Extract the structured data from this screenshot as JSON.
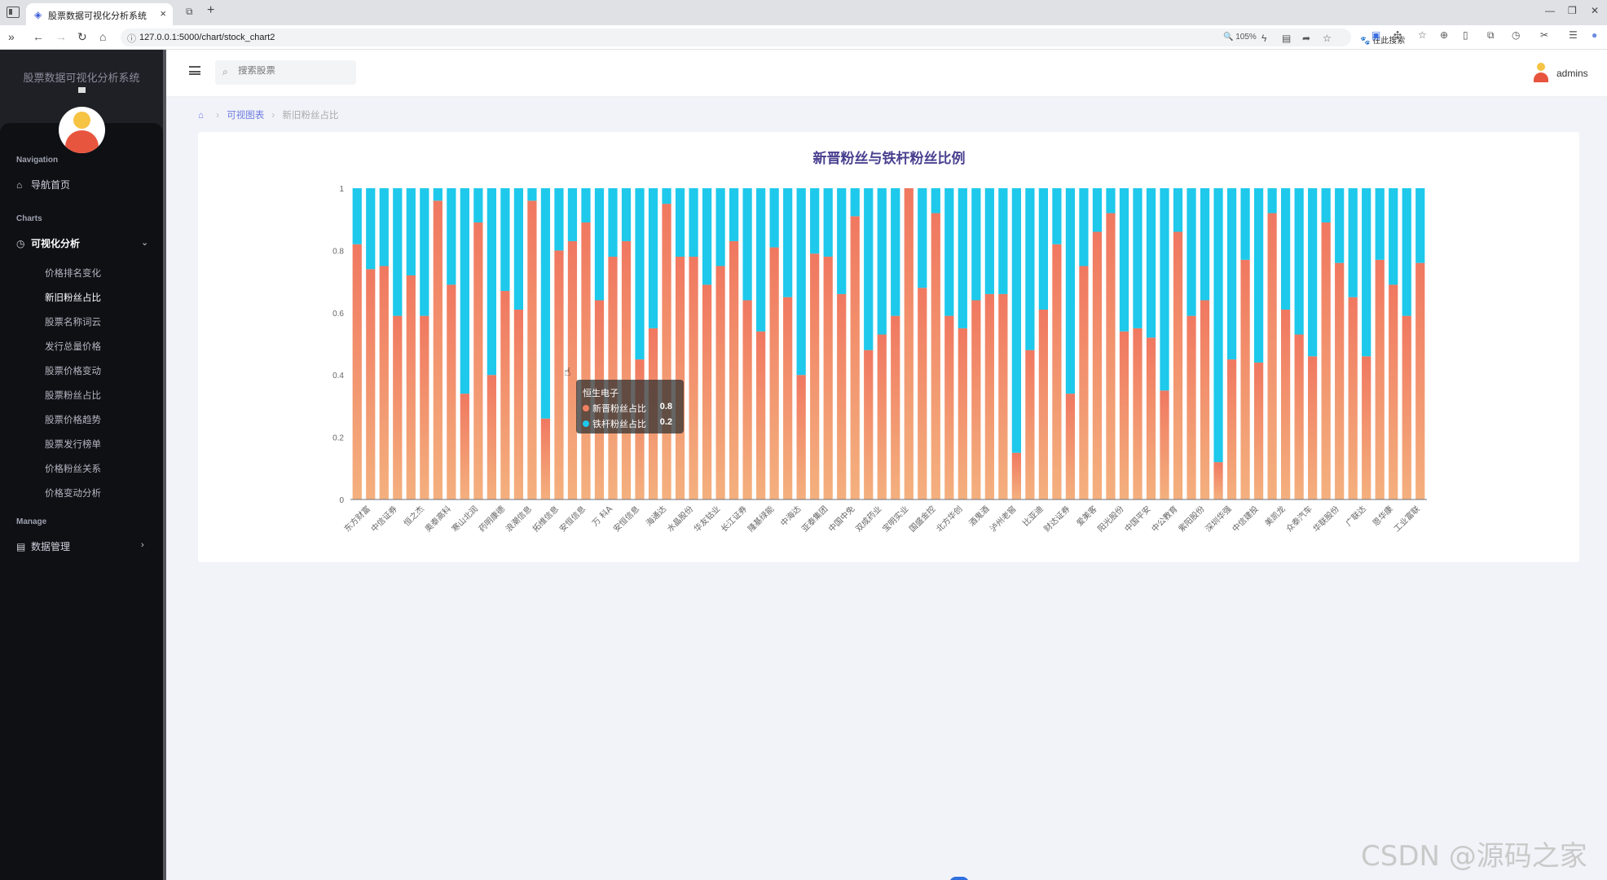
{
  "browser": {
    "tab_title": "股票数据可视化分析系统",
    "url": "127.0.0.1:5000/chart/stock_chart2",
    "zoom": "105%",
    "search_engine": "在此搜索"
  },
  "sidebar": {
    "app_title": "股票数据可视化分析系统",
    "sections": {
      "navigation": "Navigation",
      "charts": "Charts",
      "manage": "Manage"
    },
    "home_label": "导航首页",
    "charts_group_label": "可视化分析",
    "chart_items": [
      {
        "label": "价格排名变化",
        "active": false
      },
      {
        "label": "新旧粉丝占比",
        "active": true
      },
      {
        "label": "股票名称词云",
        "active": false
      },
      {
        "label": "发行总量价格",
        "active": false
      },
      {
        "label": "股票价格变动",
        "active": false
      },
      {
        "label": "股票粉丝占比",
        "active": false
      },
      {
        "label": "股票价格趋势",
        "active": false
      },
      {
        "label": "股票发行榜单",
        "active": false
      },
      {
        "label": "价格粉丝关系",
        "active": false
      },
      {
        "label": "价格变动分析",
        "active": false
      }
    ],
    "data_manage_label": "数据管理"
  },
  "header": {
    "search_placeholder": "搜索股票",
    "username": "admins"
  },
  "breadcrumb": {
    "parent": "可视图表",
    "current": "新旧粉丝占比"
  },
  "chart_data": {
    "type": "bar",
    "stacked": true,
    "title": "新晋粉丝与铁杆粉丝比例",
    "ylim": [
      0,
      1
    ],
    "yticks": [
      0,
      0.2,
      0.4,
      0.6,
      0.8,
      1
    ],
    "xtick_labels": [
      "东方财富",
      "中信证券",
      "恒之杰",
      "奥泰高科",
      "寒山北润",
      "药明康德",
      "浪潮信息",
      "拓维信息",
      "安恒信息",
      "万 科A",
      "安恒信息",
      "海通达",
      "水晶股份",
      "华友钴业",
      "长江证券",
      "隆基绿能",
      "中海达",
      "亚泰集团",
      "中国中免",
      "双成药业",
      "宝明实业",
      "国盛金控",
      "北方华创",
      "酒鬼酒",
      "泸州老窖",
      "比亚迪",
      "财达证券",
      "爱美客",
      "阳光股份",
      "中国平安",
      "中公教育",
      "紫阳股份",
      "深圳华强",
      "中信建投",
      "美凯龙",
      "众泰汽车",
      "华联股份",
      "广联达",
      "恩华康",
      "工业富联"
    ],
    "series": [
      {
        "name": "新晋粉丝占比",
        "color": "#f08062",
        "values": [
          0.82,
          0.74,
          0.75,
          0.59,
          0.72,
          0.59,
          0.96,
          0.69,
          0.34,
          0.89,
          0.4,
          0.67,
          0.61,
          0.96,
          0.26,
          0.8,
          0.83,
          0.89,
          0.64,
          0.78,
          0.83,
          0.45,
          0.55,
          0.95,
          0.78,
          0.78,
          0.69,
          0.75,
          0.83,
          0.64,
          0.54,
          0.81,
          0.65,
          0.4,
          0.79,
          0.78,
          0.66,
          0.91,
          0.48,
          0.53,
          0.59,
          1.0,
          0.68,
          0.92,
          0.59,
          0.55,
          0.64,
          0.66,
          0.66,
          0.15,
          0.48,
          0.61,
          0.82,
          0.34,
          0.75,
          0.86,
          0.92,
          0.54,
          0.55,
          0.52,
          0.35,
          0.86,
          0.59,
          0.64,
          0.12,
          0.45,
          0.77,
          0.44,
          0.92,
          0.61,
          0.53,
          0.46,
          0.89,
          0.76,
          0.65,
          0.46,
          0.77,
          0.69,
          0.59,
          0.76
        ]
      },
      {
        "name": "铁杆粉丝占比",
        "color": "#1ec9eb",
        "values": [
          0.18,
          0.26,
          0.25,
          0.41,
          0.28,
          0.41,
          0.04,
          0.31,
          0.66,
          0.11,
          0.6,
          0.33,
          0.39,
          0.04,
          0.74,
          0.2,
          0.17,
          0.11,
          0.36,
          0.22,
          0.17,
          0.55,
          0.45,
          0.05,
          0.22,
          0.22,
          0.31,
          0.25,
          0.17,
          0.36,
          0.46,
          0.19,
          0.35,
          0.6,
          0.21,
          0.22,
          0.34,
          0.09,
          0.52,
          0.47,
          0.41,
          0.0,
          0.32,
          0.08,
          0.41,
          0.45,
          0.36,
          0.34,
          0.34,
          0.85,
          0.52,
          0.39,
          0.18,
          0.66,
          0.25,
          0.14,
          0.08,
          0.46,
          0.45,
          0.48,
          0.65,
          0.14,
          0.41,
          0.36,
          0.88,
          0.55,
          0.23,
          0.56,
          0.08,
          0.39,
          0.47,
          0.54,
          0.11,
          0.24,
          0.35,
          0.54,
          0.23,
          0.31,
          0.41,
          0.24
        ]
      }
    ],
    "tooltip": {
      "category": "恒生电子",
      "rows": [
        {
          "name": "新晋粉丝占比",
          "value": "0.8",
          "color": "#f08062"
        },
        {
          "name": "铁杆粉丝占比",
          "value": "0.2",
          "color": "#1ec9eb"
        }
      ]
    }
  },
  "watermark": "CSDN @源码之家"
}
